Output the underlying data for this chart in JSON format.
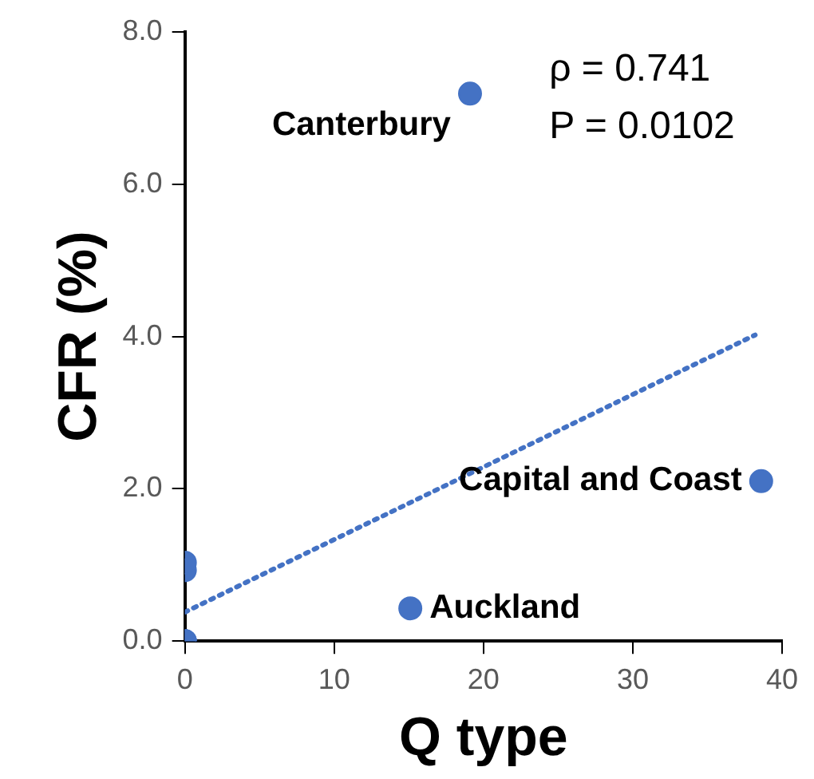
{
  "chart_data": {
    "type": "scatter",
    "xlabel": "Q type",
    "ylabel": "CFR (%)",
    "series": [
      {
        "color": "#4472c4",
        "marker": "circle",
        "x": [
          0,
          0,
          0,
          0,
          0,
          15.1,
          19.1,
          38.6
        ],
        "values": [
          0,
          0,
          0,
          0.93,
          1.03,
          0.43,
          7.19,
          2.1
        ]
      },
      {
        "type": "line",
        "color": "#4472c4",
        "line_style": "dotted",
        "x": [
          0,
          38.2
        ],
        "values": [
          0.38,
          4.02
        ]
      }
    ],
    "xlim": [
      0,
      40
    ],
    "xticks": [
      0,
      10,
      20,
      30,
      40
    ],
    "ylim": [
      0,
      8
    ],
    "yticks": [
      {
        "value": 0,
        "label": "0.0"
      },
      {
        "value": 2,
        "label": "2.0"
      },
      {
        "value": 4,
        "label": "4.0"
      },
      {
        "value": 6,
        "label": "6.0"
      },
      {
        "value": 8,
        "label": "8.0"
      }
    ],
    "grid": false,
    "legend": false,
    "annotations": [
      {
        "text": "Canterbury",
        "x": 19.1,
        "y": 7.19
      },
      {
        "text": "Capital and Coast",
        "x": 38.6,
        "y": 2.1
      },
      {
        "text": "Auckland",
        "x": 15.1,
        "y": 0.43
      },
      "ρ = 0.741",
      "P = 0.0102"
    ]
  }
}
